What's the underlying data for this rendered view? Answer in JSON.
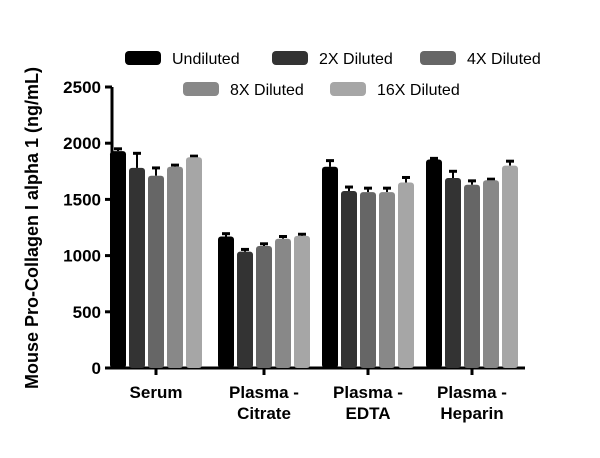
{
  "chart_data": {
    "type": "bar",
    "title": "",
    "xlabel": "",
    "ylabel": "Mouse Pro-Collagen I alpha 1 (ng/mL)",
    "ylim": [
      0,
      2500
    ],
    "yticks": [
      0,
      500,
      1000,
      1500,
      2000,
      2500
    ],
    "categories": [
      [
        "Serum"
      ],
      [
        "Plasma -",
        "Citrate"
      ],
      [
        "Plasma -",
        "EDTA"
      ],
      [
        "Plasma -",
        "Heparin"
      ]
    ],
    "legend_position": "top",
    "grid": false,
    "series": [
      {
        "name": "Undiluted",
        "color": "#000000",
        "values": [
          1930,
          1170,
          1790,
          1855
        ],
        "errors": [
          20,
          25,
          55,
          10
        ]
      },
      {
        "name": "2X Diluted",
        "color": "#333333",
        "values": [
          1780,
          1035,
          1575,
          1690
        ],
        "errors": [
          130,
          20,
          35,
          60
        ]
      },
      {
        "name": "4X Diluted",
        "color": "#666666",
        "values": [
          1710,
          1085,
          1565,
          1630
        ],
        "errors": [
          70,
          20,
          35,
          35
        ]
      },
      {
        "name": "8X Diluted",
        "color": "#888888",
        "values": [
          1790,
          1150,
          1565,
          1670
        ],
        "errors": [
          15,
          20,
          35,
          10
        ]
      },
      {
        "name": "16X Diluted",
        "color": "#a6a6a6",
        "values": [
          1875,
          1175,
          1650,
          1800
        ],
        "errors": [
          10,
          15,
          45,
          40
        ]
      }
    ]
  }
}
